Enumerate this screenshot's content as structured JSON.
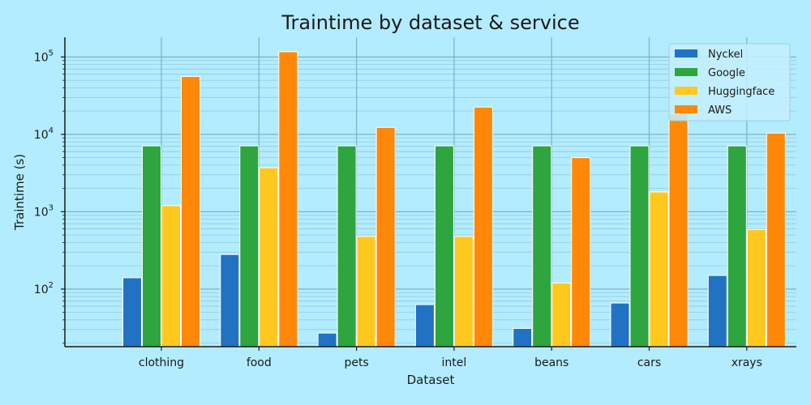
{
  "chart_data": {
    "type": "bar",
    "title": "Traintime by dataset & service",
    "xlabel": "Dataset",
    "ylabel": "Traintime (s)",
    "yscale": "log",
    "ylim": [
      18,
      180000
    ],
    "grid": true,
    "legend_position": "top-right",
    "categories": [
      "clothing",
      "food",
      "pets",
      "intel",
      "beans",
      "cars",
      "xrays"
    ],
    "y_ticks": [
      {
        "value": 100,
        "base": "10",
        "exp": "2"
      },
      {
        "value": 1000,
        "base": "10",
        "exp": "3"
      },
      {
        "value": 10000,
        "base": "10",
        "exp": "4"
      },
      {
        "value": 100000,
        "base": "10",
        "exp": "5"
      }
    ],
    "series": [
      {
        "name": "Nyckel",
        "color": "#2272c3",
        "values": [
          140,
          280,
          27,
          63,
          31,
          66,
          150
        ]
      },
      {
        "name": "Google",
        "color": "#2ea53f",
        "values": [
          7100,
          7100,
          7100,
          7100,
          7100,
          7100,
          7100
        ]
      },
      {
        "name": "Huggingface",
        "color": "#ffc81e",
        "values": [
          1200,
          3700,
          480,
          480,
          120,
          1800,
          590
        ]
      },
      {
        "name": "AWS",
        "color": "#ff8808",
        "values": [
          56000,
          117000,
          12300,
          22500,
          5000,
          18500,
          10400
        ]
      }
    ]
  }
}
